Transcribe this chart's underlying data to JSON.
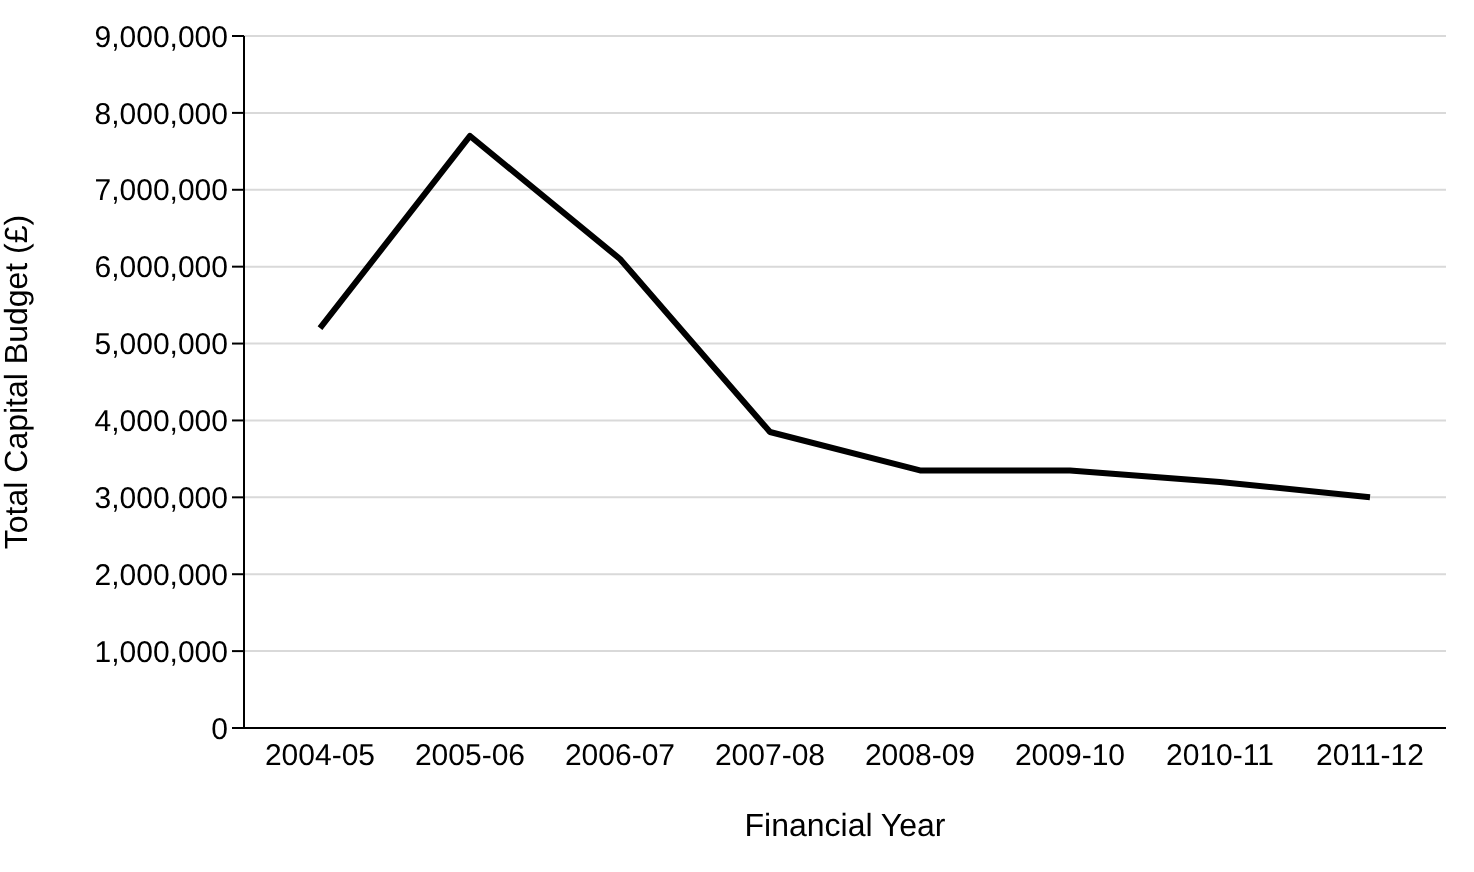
{
  "chart_data": {
    "type": "line",
    "xlabel": "Financial Year",
    "ylabel": "Total Capital Budget (£)",
    "categories": [
      "2004-05",
      "2005-06",
      "2006-07",
      "2007-08",
      "2008-09",
      "2009-10",
      "2010-11",
      "2011-12"
    ],
    "series": [
      {
        "color": "#000000",
        "values": [
          5200000,
          7700000,
          6100000,
          3850000,
          3350000,
          3350000,
          3200000,
          3000000
        ]
      }
    ],
    "ylim": [
      0,
      9000000
    ],
    "yticks": [
      0,
      {
        "value": 1000000,
        "label": "1,000,000"
      },
      {
        "value": 2000000,
        "label": "2,000,000"
      },
      {
        "value": 3000000,
        "label": "3,000,000"
      },
      {
        "value": 4000000,
        "label": "4,000,000"
      },
      {
        "value": 5000000,
        "label": "5,000,000"
      },
      {
        "value": 6000000,
        "label": "6,000,000"
      },
      {
        "value": 7000000,
        "label": "7,000,000"
      },
      {
        "value": 8000000,
        "label": "8,000,000"
      },
      {
        "value": 9000000,
        "label": "9,000,000"
      }
    ],
    "grid": "y",
    "legend": false,
    "marker": "none",
    "line_style": "solid"
  }
}
